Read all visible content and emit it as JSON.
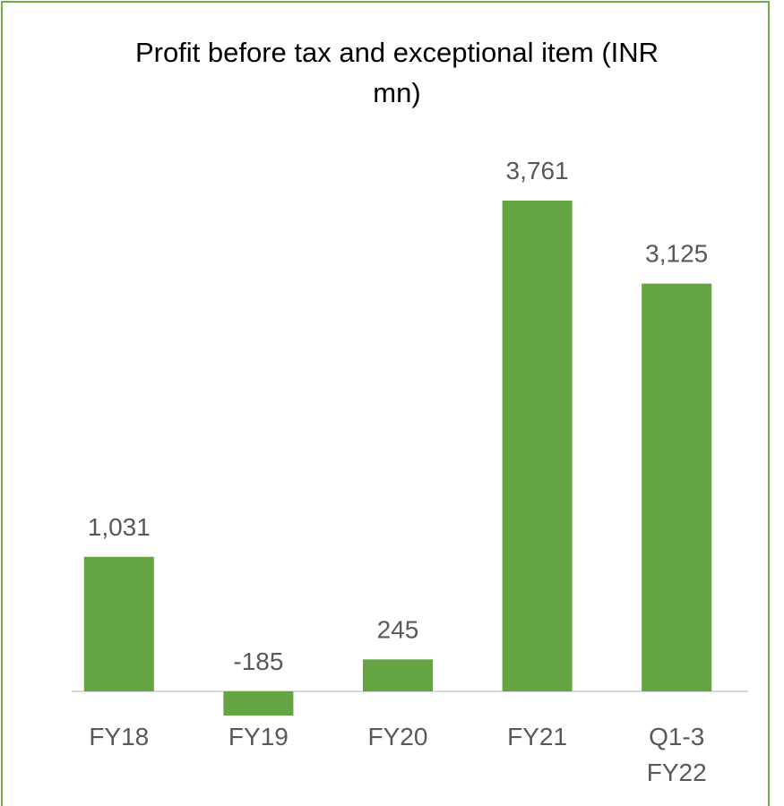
{
  "chart_data": {
    "type": "bar",
    "title": "Profit before tax and exceptional item (INR mn)",
    "categories": [
      "FY18",
      "FY19",
      "FY20",
      "FY21",
      "Q1-3 FY22"
    ],
    "values": [
      1031,
      -185,
      245,
      3761,
      3125
    ],
    "value_labels": [
      "1,031",
      "-185",
      "245",
      "3,761",
      "3,125"
    ],
    "color": "#64a443"
  }
}
